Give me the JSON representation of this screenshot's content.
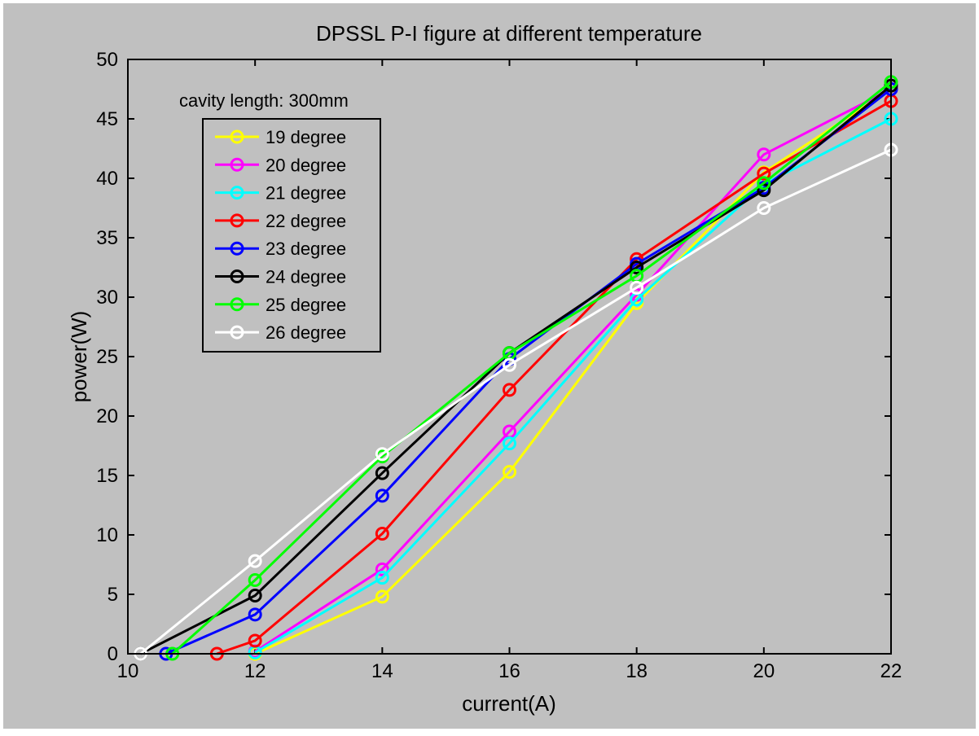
{
  "chart_data": {
    "type": "line",
    "title": "DPSSL P-I figure at different temperature",
    "xlabel": "current(A)",
    "ylabel": "power(W)",
    "xlim": [
      10,
      22
    ],
    "ylim": [
      0,
      50
    ],
    "xticks": [
      10,
      12,
      14,
      16,
      18,
      20,
      22
    ],
    "yticks": [
      0,
      5,
      10,
      15,
      20,
      25,
      30,
      35,
      40,
      45,
      50
    ],
    "annotation": "cavity length: 300mm",
    "legend_position": "top-left",
    "grid": false,
    "marker": "circle",
    "series": [
      {
        "name": "19 degree",
        "color": "#ffff00",
        "x": [
          12,
          14,
          16,
          18,
          20,
          22
        ],
        "y": [
          0,
          4.8,
          15.3,
          29.5,
          40.5,
          47.5
        ]
      },
      {
        "name": "20 degree",
        "color": "#ff00ff",
        "x": [
          12,
          14,
          16,
          18,
          20,
          22
        ],
        "y": [
          0.2,
          7.1,
          18.7,
          30.2,
          42,
          47.5
        ]
      },
      {
        "name": "21 degree",
        "color": "#00ffff",
        "x": [
          12,
          14,
          16,
          18,
          20,
          22
        ],
        "y": [
          0.1,
          6.4,
          17.7,
          29.8,
          39.5,
          45
        ]
      },
      {
        "name": "22 degree",
        "color": "#ff0000",
        "x": [
          11.4,
          12,
          14,
          16,
          18,
          20,
          22
        ],
        "y": [
          0,
          1.1,
          10.1,
          22.2,
          33.2,
          40.4,
          46.5
        ]
      },
      {
        "name": "23 degree",
        "color": "#0000ff",
        "x": [
          10.6,
          12,
          14,
          16,
          18,
          20,
          22
        ],
        "y": [
          0,
          3.3,
          13.3,
          24.8,
          32.8,
          39.2,
          47.5
        ]
      },
      {
        "name": "24 degree",
        "color": "#000000",
        "x": [
          10.2,
          12,
          14,
          16,
          18,
          20,
          22
        ],
        "y": [
          0,
          4.9,
          15.2,
          25.3,
          32.5,
          39,
          47.8
        ]
      },
      {
        "name": "25 degree",
        "color": "#00ff00",
        "x": [
          10.7,
          12,
          14,
          16,
          18,
          20,
          22
        ],
        "y": [
          0,
          6.2,
          16.6,
          25.3,
          31.8,
          39.6,
          48.1
        ]
      },
      {
        "name": "26 degree",
        "color": "#ffffff",
        "x": [
          10.2,
          12,
          14,
          16,
          18,
          20,
          22
        ],
        "y": [
          0,
          7.8,
          16.8,
          24.3,
          30.8,
          37.5,
          42.4
        ]
      }
    ]
  },
  "colors": {
    "figure_background": "#c0c0c0",
    "axes_background": "#c0c0c0",
    "axis_color": "#000000"
  }
}
